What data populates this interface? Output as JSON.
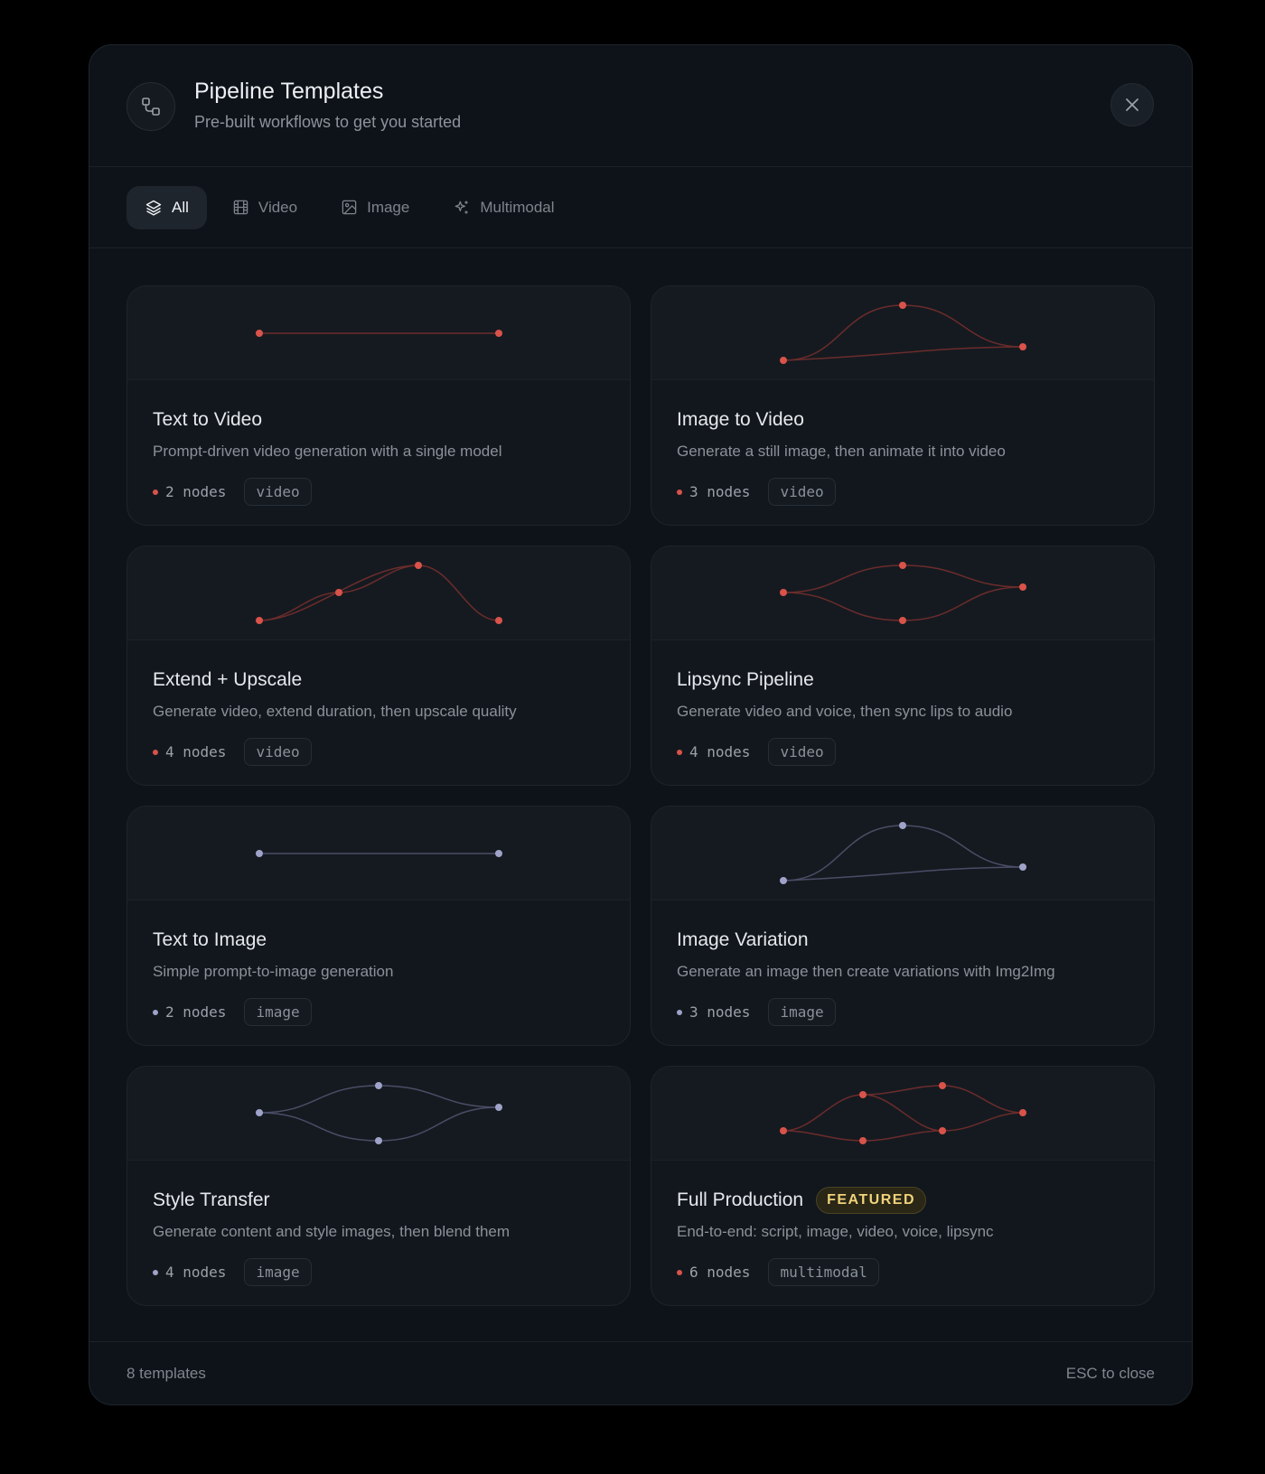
{
  "header": {
    "icon": "workflow-icon",
    "title": "Pipeline Templates",
    "subtitle": "Pre-built workflows to get you started",
    "close_icon": "close-icon"
  },
  "tabs": [
    {
      "label": "All",
      "icon": "layers-icon",
      "active": true
    },
    {
      "label": "Video",
      "icon": "film-icon",
      "active": false
    },
    {
      "label": "Image",
      "icon": "image-icon",
      "active": false
    },
    {
      "label": "Multimodal",
      "icon": "sparkles-icon",
      "active": false
    }
  ],
  "colors": {
    "video_accent": "#d9534a",
    "image_accent": "#9fa3c9",
    "multimodal_accent": "#d9534a",
    "featured": "#f0d27a"
  },
  "templates": [
    {
      "title": "Text to Video",
      "description": "Prompt-driven video generation with a single model",
      "nodes": "2 nodes",
      "tag": "video",
      "category": "video",
      "featured": false,
      "badge": ""
    },
    {
      "title": "Image to Video",
      "description": "Generate a still image, then animate it into video",
      "nodes": "3 nodes",
      "tag": "video",
      "category": "video",
      "featured": false,
      "badge": ""
    },
    {
      "title": "Extend + Upscale",
      "description": "Generate video, extend duration, then upscale quality",
      "nodes": "4 nodes",
      "tag": "video",
      "category": "video",
      "featured": false,
      "badge": ""
    },
    {
      "title": "Lipsync Pipeline",
      "description": "Generate video and voice, then sync lips to audio",
      "nodes": "4 nodes",
      "tag": "video",
      "category": "video",
      "featured": false,
      "badge": ""
    },
    {
      "title": "Text to Image",
      "description": "Simple prompt-to-image generation",
      "nodes": "2 nodes",
      "tag": "image",
      "category": "image",
      "featured": false,
      "badge": ""
    },
    {
      "title": "Image Variation",
      "description": "Generate an image then create variations with Img2Img",
      "nodes": "3 nodes",
      "tag": "image",
      "category": "image",
      "featured": false,
      "badge": ""
    },
    {
      "title": "Style Transfer",
      "description": "Generate content and style images, then blend them",
      "nodes": "4 nodes",
      "tag": "image",
      "category": "image",
      "featured": false,
      "badge": ""
    },
    {
      "title": "Full Production",
      "description": "End-to-end: script, image, video, voice, lipsync",
      "nodes": "6 nodes",
      "tag": "multimodal",
      "category": "multimodal",
      "featured": true,
      "badge": "FEATURED"
    }
  ],
  "footer": {
    "count": "8 templates",
    "hint": "ESC to close"
  }
}
